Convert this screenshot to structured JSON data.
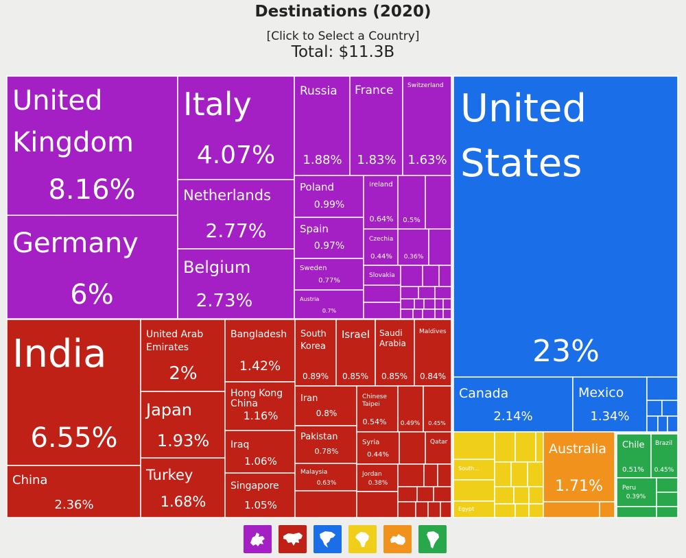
{
  "header": {
    "title": "Destinations (2020)",
    "subtitle": "[Click to Select a Country]",
    "total": "Total: $11.3B"
  },
  "colors": {
    "europe": "#a41fc4",
    "asia": "#bf2117",
    "north_america": "#1a6ee8",
    "africa": "#f0cf1a",
    "oceania": "#f0921c",
    "south_america": "#29a84b"
  },
  "chart_data": {
    "type": "treemap",
    "title": "Destinations (2020)",
    "total": "$11.3B",
    "regions": [
      "Europe",
      "Asia",
      "North America",
      "Africa",
      "Oceania",
      "South America"
    ],
    "items": [
      {
        "id": "uk",
        "name": "United Kingdom",
        "share": "8.16%",
        "region": "europe"
      },
      {
        "id": "germany",
        "name": "Germany",
        "share": "6%",
        "region": "europe"
      },
      {
        "id": "italy",
        "name": "Italy",
        "share": "4.07%",
        "region": "europe"
      },
      {
        "id": "netherlands",
        "name": "Netherlands",
        "share": "2.77%",
        "region": "europe"
      },
      {
        "id": "belgium",
        "name": "Belgium",
        "share": "2.73%",
        "region": "europe"
      },
      {
        "id": "russia",
        "name": "Russia",
        "share": "1.88%",
        "region": "europe"
      },
      {
        "id": "france",
        "name": "France",
        "share": "1.83%",
        "region": "europe"
      },
      {
        "id": "switzerland",
        "name": "Switzerland",
        "share": "1.63%",
        "region": "europe"
      },
      {
        "id": "poland",
        "name": "Poland",
        "share": "0.99%",
        "region": "europe"
      },
      {
        "id": "spain",
        "name": "Spain",
        "share": "0.97%",
        "region": "europe"
      },
      {
        "id": "sweden",
        "name": "Sweden",
        "share": "0.77%",
        "region": "europe"
      },
      {
        "id": "austria",
        "name": "Austria",
        "share": "0.7%",
        "region": "europe"
      },
      {
        "id": "ireland",
        "name": "Ireland",
        "share": "0.64%",
        "region": "europe"
      },
      {
        "id": "eu_050",
        "name": "",
        "share": "0.5%",
        "region": "europe"
      },
      {
        "id": "czechia",
        "name": "Czechia",
        "share": "0.44%",
        "region": "europe"
      },
      {
        "id": "eu_036",
        "name": "",
        "share": "0.36%",
        "region": "europe"
      },
      {
        "id": "slovakia",
        "name": "Slovakia",
        "share": "",
        "region": "europe"
      },
      {
        "id": "india",
        "name": "India",
        "share": "6.55%",
        "region": "asia"
      },
      {
        "id": "china",
        "name": "China",
        "share": "2.36%",
        "region": "asia"
      },
      {
        "id": "uae",
        "name": "United Arab Emirates",
        "share": "2%",
        "region": "asia"
      },
      {
        "id": "japan",
        "name": "Japan",
        "share": "1.93%",
        "region": "asia"
      },
      {
        "id": "turkey",
        "name": "Turkey",
        "share": "1.68%",
        "region": "asia"
      },
      {
        "id": "bangladesh",
        "name": "Bangladesh",
        "share": "1.42%",
        "region": "asia"
      },
      {
        "id": "hongkong",
        "name": "Hong Kong China",
        "share": "1.16%",
        "region": "asia"
      },
      {
        "id": "iraq",
        "name": "Iraq",
        "share": "1.06%",
        "region": "asia"
      },
      {
        "id": "singapore",
        "name": "Singapore",
        "share": "1.05%",
        "region": "asia"
      },
      {
        "id": "southkorea",
        "name": "South Korea",
        "share": "0.89%",
        "region": "asia"
      },
      {
        "id": "israel",
        "name": "Israel",
        "share": "0.85%",
        "region": "asia"
      },
      {
        "id": "saudi",
        "name": "Saudi Arabia",
        "share": "0.85%",
        "region": "asia"
      },
      {
        "id": "maldives",
        "name": "Maldives",
        "share": "0.84%",
        "region": "asia"
      },
      {
        "id": "iran",
        "name": "Iran",
        "share": "0.8%",
        "region": "asia"
      },
      {
        "id": "pakistan",
        "name": "Pakistan",
        "share": "0.78%",
        "region": "asia"
      },
      {
        "id": "malaysia",
        "name": "Malaysia",
        "share": "0.63%",
        "region": "asia"
      },
      {
        "id": "taipei",
        "name": "Chinese Taipei",
        "share": "0.54%",
        "region": "asia"
      },
      {
        "id": "as_049",
        "name": "",
        "share": "0.49%",
        "region": "asia"
      },
      {
        "id": "as_045",
        "name": "",
        "share": "0.45%",
        "region": "asia"
      },
      {
        "id": "syria",
        "name": "Syria",
        "share": "0.44%",
        "region": "asia"
      },
      {
        "id": "qatar",
        "name": "Qatar",
        "share": "",
        "region": "asia"
      },
      {
        "id": "jordan",
        "name": "Jordan",
        "share": "0.38%",
        "region": "asia"
      },
      {
        "id": "us",
        "name": "United States",
        "share": "23%",
        "region": "north_america"
      },
      {
        "id": "canada",
        "name": "Canada",
        "share": "2.14%",
        "region": "north_america"
      },
      {
        "id": "mexico",
        "name": "Mexico",
        "share": "1.34%",
        "region": "north_america"
      },
      {
        "id": "southafrica",
        "name": "South...",
        "share": "",
        "region": "africa"
      },
      {
        "id": "egypt",
        "name": "Egypt",
        "share": "",
        "region": "africa"
      },
      {
        "id": "australia",
        "name": "Australia",
        "share": "1.71%",
        "region": "oceania"
      },
      {
        "id": "chile",
        "name": "Chile",
        "share": "0.51%",
        "region": "south_america"
      },
      {
        "id": "brazil",
        "name": "Brazil",
        "share": "0.45%",
        "region": "south_america"
      },
      {
        "id": "peru",
        "name": "Peru",
        "share": "0.39%",
        "region": "south_america"
      }
    ]
  },
  "region_buttons": [
    {
      "name": "europe-icon",
      "color": "#a41fc4"
    },
    {
      "name": "asia-icon",
      "color": "#bf2117"
    },
    {
      "name": "north-america-icon",
      "color": "#1a6ee8"
    },
    {
      "name": "africa-icon",
      "color": "#f0cf1a"
    },
    {
      "name": "oceania-icon",
      "color": "#f0921c"
    },
    {
      "name": "south-america-icon",
      "color": "#29a84b"
    }
  ]
}
